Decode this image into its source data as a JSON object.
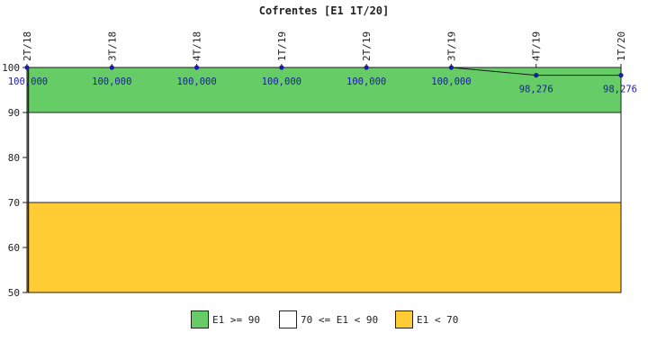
{
  "chart_data": {
    "type": "line",
    "title": "Cofrentes [E1 1T/20]",
    "categories": [
      "2T/18",
      "3T/18",
      "4T/18",
      "1T/19",
      "2T/19",
      "3T/19",
      "4T/19",
      "1T/20"
    ],
    "series": [
      {
        "values": [
          100.0,
          100.0,
          100.0,
          100.0,
          100.0,
          100.0,
          98.276,
          98.276
        ],
        "labels": [
          "100,000",
          "100,000",
          "100,000",
          "100,000",
          "100,000",
          "100,000",
          "98,276",
          "98,276"
        ],
        "color": "#1a1aa6"
      }
    ],
    "ylim": [
      50,
      100
    ],
    "yticks": [
      50,
      60,
      70,
      80,
      90,
      100
    ],
    "bands": [
      {
        "from": 90,
        "to": 100,
        "color": "#66cc66"
      },
      {
        "from": 70,
        "to": 90,
        "color": "#ffffff"
      },
      {
        "from": 50,
        "to": 70,
        "color": "#ffcc33"
      }
    ],
    "grid": false,
    "legend_position": "bottom"
  },
  "legend": [
    {
      "label": "E1 >= 90",
      "color": "#66cc66"
    },
    {
      "label": "70 <= E1 < 90",
      "color": "#ffffff"
    },
    {
      "label": "E1 < 70",
      "color": "#ffcc33"
    }
  ]
}
